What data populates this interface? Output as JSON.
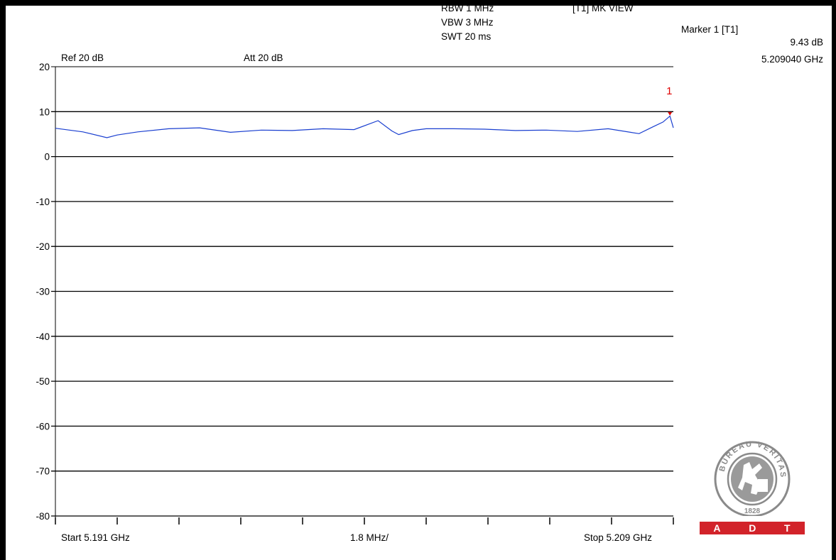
{
  "header": {
    "rbw": "RBW 1 MHz",
    "vbw": "VBW 3 MHz",
    "swt": "SWT 20 ms",
    "mode": "[T1] MK VIEW",
    "ref": "Ref 20 dB",
    "att": "Att  20 dB"
  },
  "marker": {
    "title": "Marker 1 [T1]",
    "level": "9.43 dB",
    "freq": "5.209040 GHz",
    "label": "1",
    "value_db": 9.43
  },
  "footer": {
    "start": "Start 5.191 GHz",
    "span": "1.8 MHz/",
    "stop": "Stop 5.209 GHz"
  },
  "logo": {
    "text": "BUREAU VERITAS",
    "year": "1828",
    "letters": [
      "A",
      "D",
      "T"
    ]
  },
  "colors": {
    "trace": "#1a3fd0",
    "marker": "#e00000",
    "logo_red": "#d2232a",
    "logo_grey": "#8a8a8a"
  },
  "chart_data": {
    "type": "line",
    "title": "",
    "xlabel": "",
    "ylabel": "",
    "xlim": [
      5.191,
      5.209
    ],
    "ylim": [
      -80,
      20
    ],
    "y_ticks": [
      "20",
      "10",
      "0",
      "-10",
      "-20",
      "-30",
      "-40",
      "-50",
      "-60",
      "-70",
      "-80"
    ],
    "x_divisions": 10,
    "grid": true,
    "series": [
      {
        "x": [
          5.191,
          5.1918,
          5.1925,
          5.1928,
          5.1934,
          5.1943,
          5.1952,
          5.1961,
          5.197,
          5.1979,
          5.1988,
          5.1997,
          5.2004,
          5.2008,
          5.201,
          5.2014,
          5.2018,
          5.2026,
          5.2035,
          5.2044,
          5.2053,
          5.2062,
          5.2071,
          5.208,
          5.2084,
          5.2087,
          5.2089,
          5.209
        ],
        "values": [
          6.3,
          5.5,
          4.2,
          4.8,
          5.5,
          6.2,
          6.4,
          5.4,
          5.9,
          5.8,
          6.2,
          6.0,
          8.0,
          5.7,
          4.9,
          5.8,
          6.2,
          6.2,
          6.1,
          5.8,
          5.9,
          5.6,
          6.2,
          5.1,
          6.6,
          7.7,
          9.0,
          6.4
        ]
      }
    ]
  }
}
